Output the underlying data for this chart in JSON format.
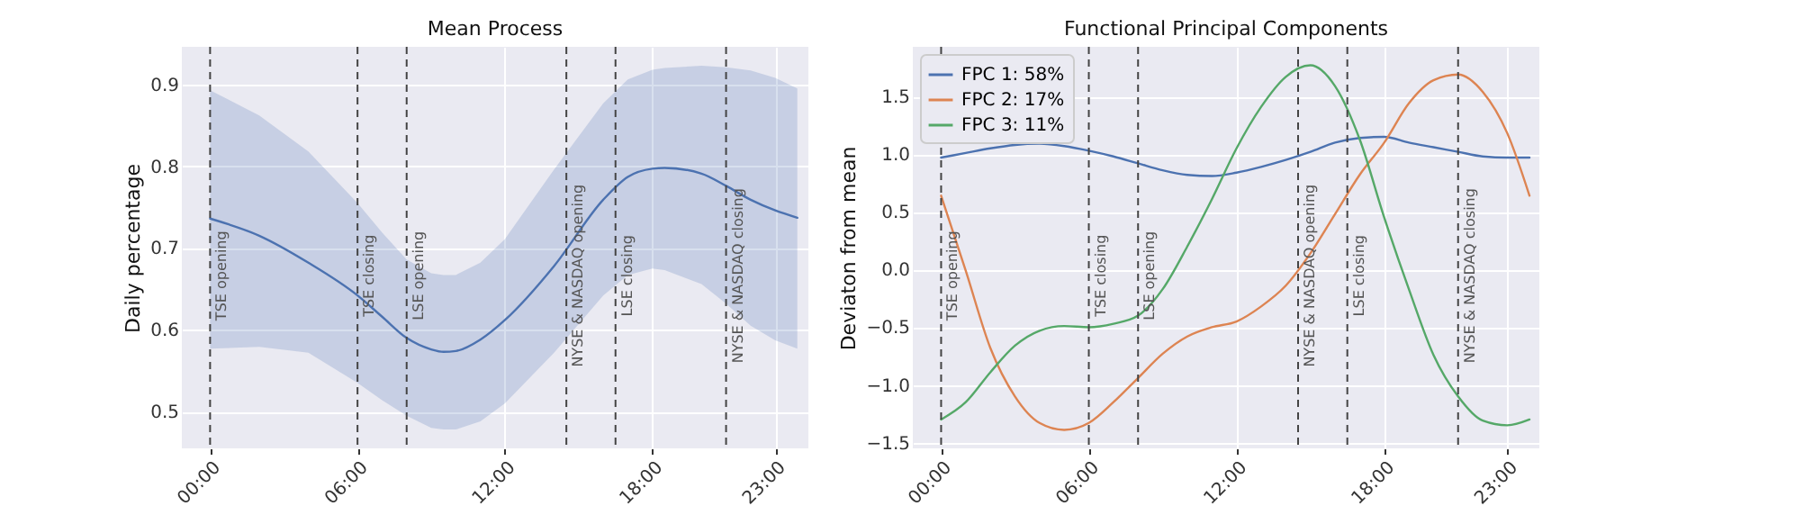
{
  "chart_data": [
    {
      "type": "line",
      "title": "Mean Process",
      "ylabel": "Daily percentage",
      "xlim": [
        -1.15,
        24.35
      ],
      "ylim": [
        0.455,
        0.946
      ],
      "xticks": [
        {
          "value": 0,
          "label": "00:00"
        },
        {
          "value": 6,
          "label": "06:00"
        },
        {
          "value": 12,
          "label": "12:00"
        },
        {
          "value": 18,
          "label": "18:00"
        },
        {
          "value": 23,
          "label": "23:00"
        }
      ],
      "yticks": [
        0.5,
        0.6,
        0.7,
        0.8,
        0.9
      ],
      "grid": true,
      "x": [
        0,
        2,
        4,
        6,
        7,
        8,
        9,
        9.5,
        10,
        11,
        12,
        14,
        16,
        17,
        18,
        18.5,
        20,
        21,
        22,
        23,
        23.9
      ],
      "series": [
        {
          "color": "#4c72b0",
          "values": [
            0.736,
            0.715,
            0.682,
            0.642,
            0.616,
            0.59,
            0.576,
            0.573,
            0.574,
            0.588,
            0.612,
            0.678,
            0.759,
            0.787,
            0.797,
            0.798,
            0.791,
            0.776,
            0.759,
            0.746,
            0.737
          ],
          "lower": [
            0.577,
            0.579,
            0.572,
            0.535,
            0.514,
            0.495,
            0.48,
            0.478,
            0.478,
            0.488,
            0.51,
            0.572,
            0.642,
            0.667,
            0.675,
            0.673,
            0.656,
            0.632,
            0.605,
            0.587,
            0.577
          ],
          "upper": [
            0.893,
            0.862,
            0.818,
            0.755,
            0.719,
            0.686,
            0.669,
            0.667,
            0.667,
            0.682,
            0.711,
            0.796,
            0.877,
            0.906,
            0.918,
            0.92,
            0.923,
            0.921,
            0.917,
            0.908,
            0.895
          ]
        }
      ],
      "ref_lines": [
        {
          "axis": "x",
          "value": 0,
          "label": "TSE opening",
          "line_style": "dashed"
        },
        {
          "axis": "x",
          "value": 6,
          "label": "TSE closing",
          "line_style": "dashed"
        },
        {
          "axis": "x",
          "value": 8,
          "label": "LSE opening",
          "line_style": "dashed"
        },
        {
          "axis": "x",
          "value": 14.5,
          "label": "NYSE & NASDAQ opening",
          "line_style": "dashed"
        },
        {
          "axis": "x",
          "value": 16.5,
          "label": "LSE closing",
          "line_style": "dashed"
        },
        {
          "axis": "x",
          "value": 21,
          "label": "NYSE & NASDAQ closing",
          "line_style": "dashed"
        }
      ]
    },
    {
      "type": "line",
      "title": "Functional Principal Components",
      "ylabel": "Deviaton from mean",
      "xlim": [
        -1.15,
        24.3
      ],
      "ylim": [
        -1.55,
        1.93
      ],
      "xticks": [
        {
          "value": 0,
          "label": "00:00"
        },
        {
          "value": 6,
          "label": "06:00"
        },
        {
          "value": 12,
          "label": "12:00"
        },
        {
          "value": 18,
          "label": "18:00"
        },
        {
          "value": 23,
          "label": "23:00"
        }
      ],
      "yticks": [
        {
          "value": -1.5,
          "label": "−1.5"
        },
        {
          "value": -1,
          "label": "−1.0"
        },
        {
          "value": -0.5,
          "label": "−0.5"
        },
        {
          "value": 0,
          "label": "0.0"
        },
        0.5,
        {
          "value": 1,
          "label": "1.0"
        },
        1.5
      ],
      "grid": true,
      "legend": "top left",
      "x": [
        0,
        1,
        2,
        3,
        4,
        5,
        6,
        7,
        8,
        9,
        10,
        11,
        12,
        13,
        14,
        15,
        16,
        17,
        18,
        19,
        20,
        21,
        22,
        23,
        23.9
      ],
      "series": [
        {
          "name": "FPC 1: 58%",
          "color": "#4c72b0",
          "values": [
            0.97,
            1.01,
            1.05,
            1.08,
            1.09,
            1.07,
            1.03,
            0.98,
            0.92,
            0.86,
            0.82,
            0.81,
            0.84,
            0.89,
            0.95,
            1.02,
            1.1,
            1.14,
            1.15,
            1.1,
            1.06,
            1.02,
            0.98,
            0.97,
            0.97
          ]
        },
        {
          "name": "FPC 2: 17%",
          "color": "#dd8452",
          "values": [
            0.64,
            -0.01,
            -0.68,
            -1.1,
            -1.33,
            -1.39,
            -1.33,
            -1.15,
            -0.94,
            -0.73,
            -0.58,
            -0.5,
            -0.45,
            -0.32,
            -0.14,
            0.14,
            0.48,
            0.82,
            1.1,
            1.44,
            1.64,
            1.69,
            1.54,
            1.18,
            0.64
          ]
        },
        {
          "name": "FPC 3: 11%",
          "color": "#55a868",
          "values": [
            -1.3,
            -1.15,
            -0.89,
            -0.66,
            -0.53,
            -0.49,
            -0.5,
            -0.47,
            -0.4,
            -0.17,
            0.2,
            0.61,
            1.05,
            1.41,
            1.67,
            1.77,
            1.59,
            1.13,
            0.45,
            -0.17,
            -0.74,
            -1.1,
            -1.31,
            -1.35,
            -1.3
          ]
        }
      ],
      "ref_lines": [
        {
          "axis": "x",
          "value": 0,
          "label": "TSE opening",
          "line_style": "dashed"
        },
        {
          "axis": "x",
          "value": 6,
          "label": "TSE closing",
          "line_style": "dashed"
        },
        {
          "axis": "x",
          "value": 8,
          "label": "LSE opening",
          "line_style": "dashed"
        },
        {
          "axis": "x",
          "value": 14.5,
          "label": "NYSE & NASDAQ opening",
          "line_style": "dashed"
        },
        {
          "axis": "x",
          "value": 16.5,
          "label": "LSE closing",
          "line_style": "dashed"
        },
        {
          "axis": "x",
          "value": 21,
          "label": "NYSE & NASDAQ closing",
          "line_style": "dashed"
        }
      ]
    }
  ]
}
